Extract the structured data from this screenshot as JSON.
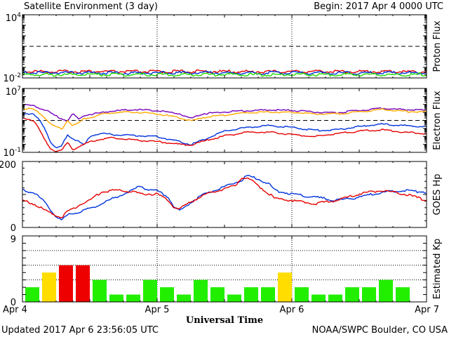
{
  "header": {
    "title": "Satellite Environment (3 day)",
    "begin": "Begin:  2017 Apr 4 0000 UTC"
  },
  "footer": {
    "updated": "Updated 2017 Apr  6 23:56:05 UTC",
    "credit": "NOAA/SWPC Boulder, CO USA"
  },
  "xaxis": {
    "label": "Universal Time",
    "ticks": [
      "Apr 4",
      "Apr 5",
      "Apr 6",
      "Apr 7"
    ],
    "range_hours": [
      0,
      72
    ]
  },
  "colors": {
    "red": "#e60000",
    "blue": "#0033dd",
    "green": "#22dd00",
    "purple": "#7700bb",
    "orange": "#ffaa00",
    "kp_green": "#22ee00",
    "kp_yellow": "#ffdd00",
    "kp_red": "#ee0000"
  },
  "chart_data": [
    {
      "type": "line",
      "ylabel": "Proton Flux",
      "yscale": "log",
      "ylim": [
        0.01,
        10000
      ],
      "ytick_labels": [
        {
          "base": "10",
          "exp": "4"
        },
        {
          "base": "10",
          "exp": "-2"
        }
      ],
      "threshold": 10,
      "series": [
        {
          "color": "red",
          "x": [
            0,
            6,
            12,
            18,
            24,
            30,
            36,
            42,
            48,
            54,
            60,
            66,
            72
          ],
          "y": [
            0.035,
            0.034,
            0.035,
            0.033,
            0.034,
            0.035,
            0.034,
            0.033,
            0.034,
            0.035,
            0.034,
            0.034,
            0.033
          ]
        },
        {
          "color": "blue",
          "x": [
            0,
            6,
            12,
            18,
            24,
            30,
            36,
            42,
            48,
            54,
            60,
            66,
            72
          ],
          "y": [
            0.026,
            0.025,
            0.026,
            0.025,
            0.025,
            0.026,
            0.025,
            0.025,
            0.026,
            0.025,
            0.025,
            0.026,
            0.025
          ]
        },
        {
          "color": "green",
          "x": [
            0,
            6,
            12,
            18,
            24,
            30,
            36,
            42,
            48,
            54,
            60,
            66,
            72
          ],
          "y": [
            0.018,
            0.017,
            0.018,
            0.017,
            0.018,
            0.017,
            0.018,
            0.017,
            0.018,
            0.017,
            0.018,
            0.017,
            0.018
          ]
        }
      ]
    },
    {
      "type": "line",
      "ylabel": "Electron Flux",
      "yscale": "log",
      "ylim": [
        0.1,
        10000000
      ],
      "ytick_labels": [
        {
          "base": "10",
          "exp": "7"
        },
        {
          "base": "10",
          "exp": "-1"
        }
      ],
      "threshold": 1000,
      "series": [
        {
          "color": "purple",
          "x": [
            0,
            2,
            3,
            4,
            5,
            6,
            7,
            8,
            9,
            10,
            11,
            12,
            14,
            16,
            20,
            24,
            28,
            30,
            32,
            36,
            40,
            44,
            48,
            52,
            56,
            60,
            64,
            68,
            72
          ],
          "y": [
            80000,
            60000,
            30000,
            20000,
            8000,
            3000,
            1500,
            800,
            6000,
            1200,
            4000,
            5000,
            8000,
            14000,
            20000,
            15000,
            6000,
            1500,
            6000,
            10000,
            14000,
            18000,
            16000,
            10000,
            8000,
            16000,
            30000,
            20000,
            16000
          ]
        },
        {
          "color": "orange",
          "x": [
            0,
            2,
            3,
            4,
            5,
            6,
            7,
            8,
            9,
            10,
            11,
            12,
            14,
            16,
            20,
            24,
            28,
            30,
            32,
            36,
            40,
            44,
            48,
            52,
            56,
            60,
            64,
            68,
            72
          ],
          "y": [
            30000,
            20000,
            8000,
            2000,
            300,
            150,
            60,
            1000,
            200,
            400,
            1500,
            2000,
            5000,
            8000,
            10000,
            6000,
            2000,
            700,
            2000,
            4000,
            8000,
            10000,
            9000,
            6000,
            6000,
            10000,
            20000,
            12000,
            10000
          ]
        },
        {
          "color": "blue",
          "x": [
            0,
            2,
            3,
            4,
            5,
            6,
            7,
            8,
            9,
            10,
            11,
            12,
            14,
            16,
            20,
            24,
            28,
            30,
            32,
            36,
            40,
            44,
            48,
            52,
            56,
            60,
            64,
            68,
            72
          ],
          "y": [
            8000,
            5000,
            1000,
            80,
            2,
            0.3,
            0.5,
            15,
            5,
            2,
            0.6,
            10,
            20,
            15,
            12,
            8,
            2,
            0.8,
            3,
            40,
            120,
            200,
            120,
            50,
            60,
            150,
            300,
            200,
            150
          ]
        },
        {
          "color": "red",
          "x": [
            0,
            2,
            3,
            4,
            5,
            6,
            7,
            8,
            9,
            10,
            11,
            12,
            14,
            16,
            20,
            24,
            28,
            30,
            32,
            36,
            40,
            44,
            48,
            52,
            56,
            60,
            64,
            68,
            72
          ],
          "y": [
            2000,
            800,
            60,
            3,
            0.3,
            0.12,
            0.15,
            1.5,
            0.2,
            0.5,
            0.8,
            2,
            4,
            6,
            3,
            2,
            0.9,
            0.7,
            2,
            10,
            30,
            30,
            15,
            8,
            20,
            40,
            60,
            30,
            20
          ]
        }
      ]
    },
    {
      "type": "line",
      "ylabel": "GOES Hp",
      "ylim": [
        0,
        200
      ],
      "ytick_labels": [
        "200",
        "0"
      ],
      "series": [
        {
          "color": "blue",
          "x": [
            0,
            2,
            4,
            6,
            7,
            8,
            10,
            12,
            14,
            16,
            18,
            20,
            21,
            22,
            24,
            26,
            27,
            28,
            30,
            32,
            34,
            36,
            38,
            39,
            40,
            42,
            44,
            45,
            48,
            52,
            56,
            60,
            64,
            68,
            72
          ],
          "y": [
            110,
            105,
            75,
            30,
            20,
            35,
            45,
            55,
            70,
            85,
            100,
            115,
            125,
            115,
            110,
            90,
            60,
            48,
            75,
            95,
            110,
            120,
            135,
            140,
            155,
            145,
            130,
            110,
            100,
            90,
            80,
            90,
            105,
            110,
            105
          ]
        },
        {
          "color": "red",
          "x": [
            0,
            2,
            4,
            6,
            7,
            8,
            10,
            12,
            14,
            16,
            18,
            20,
            21,
            22,
            24,
            26,
            27,
            28,
            30,
            32,
            34,
            36,
            38,
            39,
            40,
            42,
            44,
            45,
            48,
            52,
            56,
            60,
            64,
            68,
            72
          ],
          "y": [
            80,
            70,
            50,
            35,
            30,
            45,
            65,
            80,
            105,
            110,
            110,
            105,
            100,
            100,
            100,
            80,
            60,
            55,
            75,
            95,
            105,
            115,
            125,
            150,
            150,
            125,
            100,
            85,
            80,
            70,
            80,
            100,
            110,
            100,
            80
          ]
        }
      ]
    },
    {
      "type": "bar",
      "ylabel": "Estimated Kp",
      "ylim": [
        0,
        9
      ],
      "ytick_labels": [
        "9",
        "0"
      ],
      "bar_hours": 3,
      "values": [
        2,
        4,
        5,
        5,
        3,
        1,
        1,
        3,
        2,
        1,
        3,
        2,
        1,
        2,
        2,
        4,
        2,
        1,
        1,
        2,
        2,
        3,
        2,
        0
      ],
      "colors": [
        "kp_green",
        "kp_yellow",
        "kp_red",
        "kp_red",
        "kp_green",
        "kp_green",
        "kp_green",
        "kp_green",
        "kp_green",
        "kp_green",
        "kp_green",
        "kp_green",
        "kp_green",
        "kp_green",
        "kp_green",
        "kp_yellow",
        "kp_green",
        "kp_green",
        "kp_green",
        "kp_green",
        "kp_green",
        "kp_green",
        "kp_green",
        "kp_green"
      ]
    }
  ]
}
